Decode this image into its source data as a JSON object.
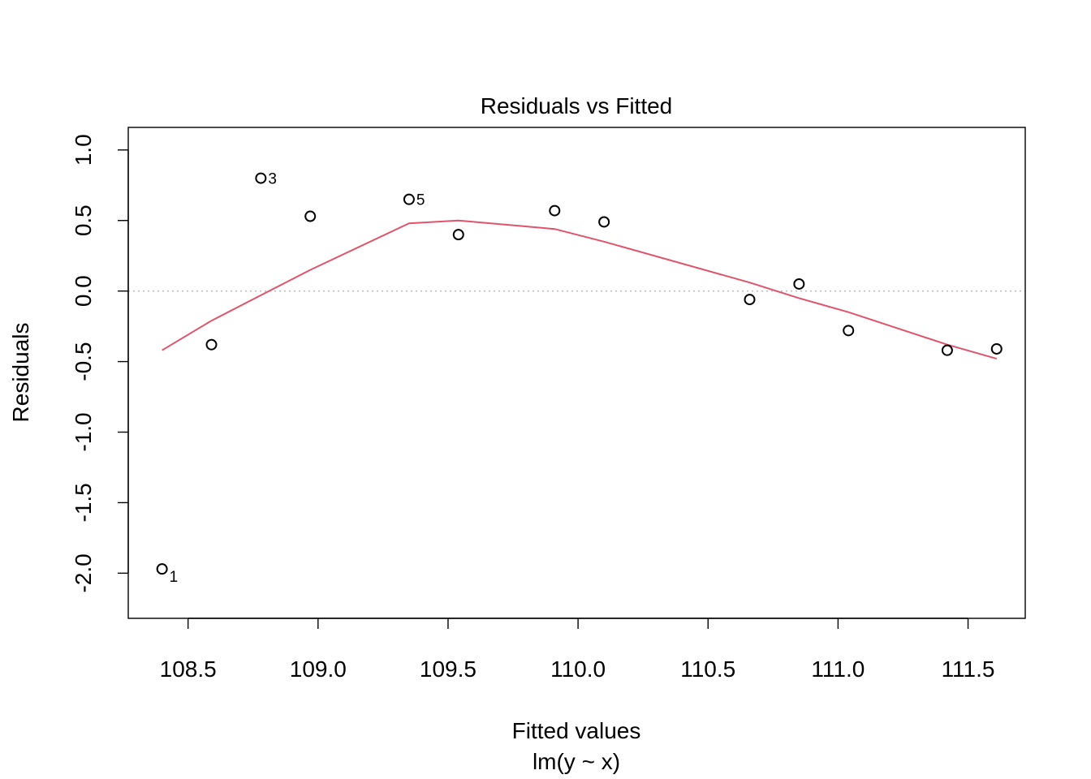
{
  "chart_data": {
    "type": "scatter",
    "title": "Residuals vs Fitted",
    "xlabel": "Fitted values",
    "xsublabel": "lm(y ~ x)",
    "ylabel": "Residuals",
    "xlim": [
      108.27,
      111.72
    ],
    "ylim": [
      -2.32,
      1.16
    ],
    "xticks": [
      108.5,
      109.0,
      109.5,
      110.0,
      110.5,
      111.0,
      111.5
    ],
    "xtick_labels": [
      "108.5",
      "109.0",
      "109.5",
      "110.0",
      "110.5",
      "111.0",
      "111.5"
    ],
    "yticks": [
      -2.0,
      -1.5,
      -1.0,
      -0.5,
      0.0,
      0.5,
      1.0
    ],
    "ytick_labels": [
      "-2.0",
      "-1.5",
      "-1.0",
      "-0.5",
      "0.0",
      "0.5",
      "1.0"
    ],
    "grid": false,
    "reference_line": {
      "y": 0.0,
      "style": "dotted",
      "color": "#bebebe"
    },
    "points": [
      {
        "x": 108.4,
        "y": -1.97,
        "label": "1"
      },
      {
        "x": 108.59,
        "y": -0.38,
        "label": ""
      },
      {
        "x": 108.78,
        "y": 0.8,
        "label": "3"
      },
      {
        "x": 108.97,
        "y": 0.53,
        "label": ""
      },
      {
        "x": 109.35,
        "y": 0.65,
        "label": "5"
      },
      {
        "x": 109.54,
        "y": 0.4,
        "label": ""
      },
      {
        "x": 109.91,
        "y": 0.57,
        "label": ""
      },
      {
        "x": 110.1,
        "y": 0.49,
        "label": ""
      },
      {
        "x": 110.66,
        "y": -0.06,
        "label": ""
      },
      {
        "x": 110.85,
        "y": 0.05,
        "label": ""
      },
      {
        "x": 111.04,
        "y": -0.28,
        "label": ""
      },
      {
        "x": 111.42,
        "y": -0.42,
        "label": ""
      },
      {
        "x": 111.61,
        "y": -0.41,
        "label": ""
      }
    ],
    "smooth_line": {
      "color": "#df536b",
      "x": [
        108.4,
        108.59,
        108.78,
        108.97,
        109.35,
        109.54,
        109.91,
        110.1,
        110.66,
        110.85,
        111.04,
        111.42,
        111.61
      ],
      "y": [
        -0.42,
        -0.21,
        -0.03,
        0.15,
        0.48,
        0.5,
        0.44,
        0.35,
        0.06,
        -0.05,
        -0.15,
        -0.38,
        -0.48
      ]
    }
  }
}
